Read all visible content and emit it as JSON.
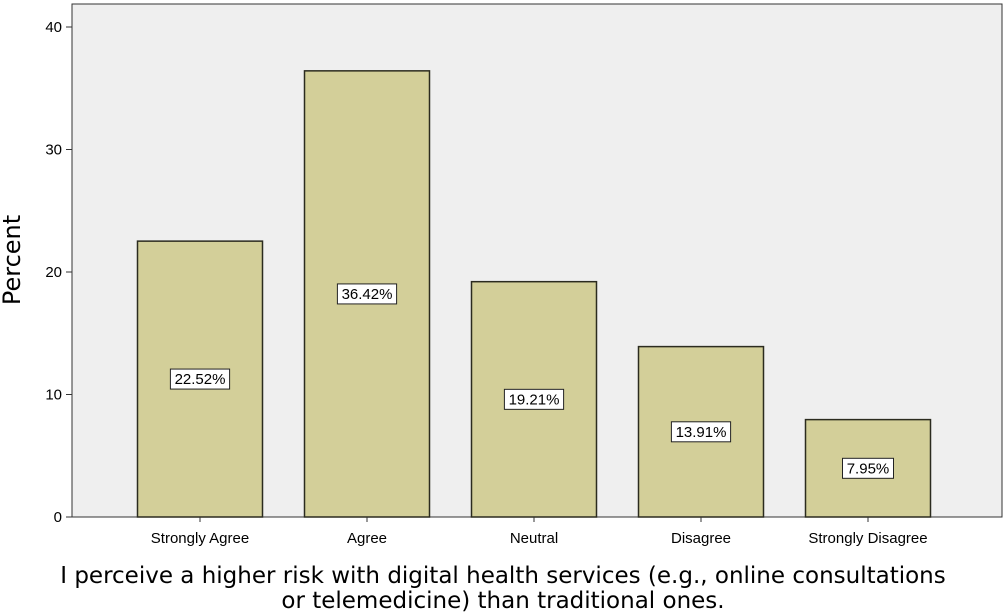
{
  "chart_data": {
    "type": "bar",
    "categories": [
      "Strongly Agree",
      "Agree",
      "Neutral",
      "Disagree",
      "Strongly Disagree"
    ],
    "values": [
      22.52,
      36.42,
      19.21,
      13.91,
      7.95
    ],
    "data_labels": [
      "22.52%",
      "36.42%",
      "19.21%",
      "13.91%",
      "7.95%"
    ],
    "ylabel": "Percent",
    "xlabel_lines": [
      "I perceive a higher risk with digital health services (e.g., online consultations",
      "or telemedicine) than traditional ones."
    ],
    "ylim": [
      0,
      40
    ],
    "yticks": [
      0,
      10,
      20,
      30,
      40
    ],
    "grid": false,
    "legend": "none",
    "colors": {
      "bar_fill": "#d3cf99",
      "bar_stroke": "#2b2b1f",
      "plot_background": "#efefef",
      "label_box_fill": "#ffffff"
    }
  }
}
